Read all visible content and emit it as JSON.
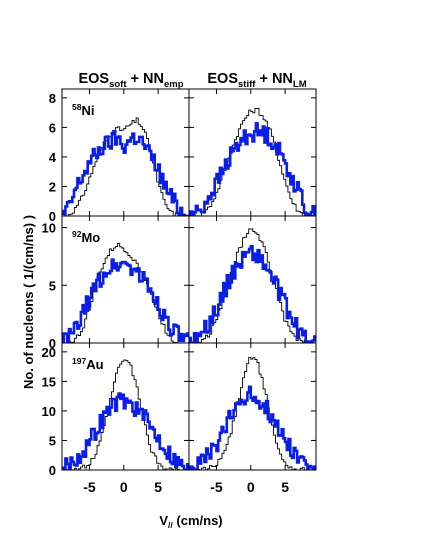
{
  "figure": {
    "ylabel": "No. of nucleons ( 1/(cm/ns) )",
    "xlabel": {
      "main": "V",
      "sub": "//",
      "unit": " (cm/ns)"
    },
    "col_titles": [
      {
        "a": "EOS",
        "a_sub": "soft",
        "b": " + NN",
        "b_sub": "emp"
      },
      {
        "a": "EOS",
        "a_sub": "stiff",
        "b": " + NN",
        "b_sub": "LM"
      }
    ],
    "rows": [
      {
        "nucleus_mass": "58",
        "nucleus": "Ni",
        "yticks": [
          "0",
          "2",
          "4",
          "6",
          "8"
        ]
      },
      {
        "nucleus_mass": "92",
        "nucleus": "Mo",
        "yticks": [
          "0",
          "5",
          "10"
        ]
      },
      {
        "nucleus_mass": "197",
        "nucleus": "Au",
        "yticks": [
          "0",
          "5",
          "10",
          "15",
          "20"
        ]
      }
    ],
    "xticks": [
      "-5",
      "0",
      "5"
    ]
  },
  "chart_data": {
    "type": "line",
    "grid": false,
    "xlim": [
      -9,
      9.5
    ],
    "colors": {
      "thin": "#000000",
      "thick": "#0a1ee8"
    },
    "panels": [
      {
        "row": 0,
        "col": 0,
        "ylim": [
          0,
          8.6
        ],
        "series": [
          {
            "style": "thin",
            "x": [
              -9,
              -8,
              -7,
              -6,
              -5,
              -4,
              -3,
              -2,
              -1,
              0,
              1,
              2,
              3,
              4,
              5,
              6,
              7,
              8,
              9
            ],
            "y": [
              0,
              0.1,
              0.5,
              1.3,
              2.5,
              3.8,
              4.8,
              5.5,
              5.9,
              5.8,
              6.2,
              6.5,
              5.8,
              4.2,
              2.3,
              0.8,
              0.2,
              0.05,
              0
            ]
          },
          {
            "style": "thick",
            "x": [
              -9,
              -8,
              -7,
              -6,
              -5,
              -4,
              -3,
              -2,
              -1,
              0,
              1,
              2,
              3,
              4,
              5,
              6,
              7,
              8,
              9
            ],
            "y": [
              0,
              0.5,
              1.8,
              2.7,
              3.6,
              4.2,
              4.7,
              5.0,
              5.3,
              4.7,
              5.2,
              5.4,
              4.8,
              4.0,
              3.2,
              2.0,
              1.2,
              0.5,
              0.1
            ]
          }
        ]
      },
      {
        "row": 0,
        "col": 1,
        "ylim": [
          0,
          8.6
        ],
        "series": [
          {
            "style": "thin",
            "x": [
              -9,
              -8,
              -7,
              -6,
              -5,
              -4,
              -3,
              -2,
              -1,
              0,
              1,
              2,
              3,
              4,
              5,
              6,
              7,
              8,
              9
            ],
            "y": [
              0,
              0.05,
              0.2,
              0.6,
              1.5,
              2.8,
              4.2,
              5.5,
              6.5,
              7.1,
              7.2,
              6.6,
              5.6,
              4.0,
              2.4,
              1.0,
              0.3,
              0.05,
              0
            ]
          },
          {
            "style": "thick",
            "x": [
              -9,
              -8,
              -7,
              -6,
              -5,
              -4,
              -3,
              -2,
              -1,
              0,
              1,
              2,
              3,
              4,
              5,
              6,
              7,
              8,
              9
            ],
            "y": [
              0,
              0.2,
              0.6,
              1.4,
              2.2,
              3.1,
              4.0,
              4.7,
              5.3,
              5.6,
              5.7,
              5.6,
              5.2,
              4.5,
              3.6,
              2.6,
              1.6,
              0.6,
              0.1
            ]
          }
        ]
      },
      {
        "row": 1,
        "col": 0,
        "ylim": [
          0,
          11
        ],
        "series": [
          {
            "style": "thin",
            "x": [
              -9,
              -8,
              -7,
              -6,
              -5,
              -4,
              -3,
              -2,
              -1,
              0,
              1,
              2,
              3,
              4,
              5,
              6,
              7,
              8,
              9
            ],
            "y": [
              0,
              0.05,
              0.3,
              1.2,
              3.0,
              5.2,
              6.8,
              7.9,
              8.5,
              8.2,
              7.6,
              6.9,
              5.7,
              4.2,
              2.6,
              1.2,
              0.3,
              0.05,
              0
            ]
          },
          {
            "style": "thick",
            "x": [
              -9,
              -8,
              -7,
              -6,
              -5,
              -4,
              -3,
              -2,
              -1,
              0,
              1,
              2,
              3,
              4,
              5,
              6,
              7,
              8,
              9
            ],
            "y": [
              0.1,
              0.4,
              1.2,
              2.4,
              3.8,
              5.0,
              5.9,
              6.5,
              6.8,
              6.9,
              6.6,
              6.1,
              5.4,
              4.5,
              3.4,
              2.3,
              1.3,
              0.6,
              0.2
            ]
          }
        ]
      },
      {
        "row": 1,
        "col": 1,
        "ylim": [
          0,
          11
        ],
        "series": [
          {
            "style": "thin",
            "x": [
              -9,
              -8,
              -7,
              -6,
              -5,
              -4,
              -3,
              -2,
              -1,
              0,
              1,
              2,
              3,
              4,
              5,
              6,
              7,
              8,
              9
            ],
            "y": [
              0,
              0.05,
              0.2,
              0.8,
              2.0,
              3.8,
              5.8,
              7.6,
              9.0,
              9.8,
              9.5,
              8.2,
              6.2,
              4.0,
              2.0,
              0.8,
              0.2,
              0.05,
              0
            ]
          },
          {
            "style": "thick",
            "x": [
              -9,
              -8,
              -7,
              -6,
              -5,
              -4,
              -3,
              -2,
              -1,
              0,
              1,
              2,
              3,
              4,
              5,
              6,
              7,
              8,
              9
            ],
            "y": [
              0,
              0.3,
              0.9,
              1.8,
              3.0,
              4.3,
              5.6,
              6.7,
              7.5,
              7.9,
              7.6,
              6.8,
              5.8,
              4.6,
              3.3,
              2.0,
              1.0,
              0.4,
              0.1
            ]
          }
        ]
      },
      {
        "row": 2,
        "col": 0,
        "ylim": [
          0,
          21.5
        ],
        "series": [
          {
            "style": "thin",
            "x": [
              -9,
              -8,
              -7,
              -6,
              -5,
              -4,
              -3,
              -2,
              -1,
              0,
              1,
              2,
              3,
              4,
              5,
              6,
              7,
              8,
              9
            ],
            "y": [
              0,
              0,
              0.1,
              0.3,
              1.0,
              2.8,
              6.5,
              11.5,
              16.5,
              18.8,
              17.8,
              13.5,
              8.0,
              3.5,
              1.2,
              0.3,
              0.1,
              0,
              0
            ]
          },
          {
            "style": "thick",
            "x": [
              -9,
              -8,
              -7,
              -6,
              -5,
              -4,
              -3,
              -2,
              -1,
              0,
              1,
              2,
              3,
              4,
              5,
              6,
              7,
              8,
              9
            ],
            "y": [
              0.5,
              1.0,
              1.8,
              3.0,
              4.8,
              6.8,
              8.8,
              10.5,
              11.6,
              11.8,
              11.2,
              10.2,
              8.8,
              7.2,
              5.5,
              3.8,
              2.4,
              1.2,
              0.4
            ]
          }
        ]
      },
      {
        "row": 2,
        "col": 1,
        "ylim": [
          0,
          21.5
        ],
        "series": [
          {
            "style": "thin",
            "x": [
              -9,
              -8,
              -7,
              -6,
              -5,
              -4,
              -3,
              -2,
              -1,
              0,
              1,
              2,
              3,
              4,
              5,
              6,
              7,
              8,
              9
            ],
            "y": [
              0,
              0,
              0.1,
              0.3,
              1.0,
              2.5,
              5.8,
              10.5,
              16.0,
              19.2,
              18.0,
              13.8,
              8.2,
              3.5,
              1.2,
              0.3,
              0.1,
              0,
              0
            ]
          },
          {
            "style": "thick",
            "x": [
              -9,
              -8,
              -7,
              -6,
              -5,
              -4,
              -3,
              -2,
              -1,
              0,
              1,
              2,
              3,
              4,
              5,
              6,
              7,
              8,
              9
            ],
            "y": [
              0.3,
              0.8,
              1.5,
              2.6,
              4.2,
              6.3,
              8.8,
              11.0,
              12.5,
              12.8,
              12.2,
              11.0,
              9.2,
              7.2,
              5.3,
              3.6,
              2.2,
              1.0,
              0.3
            ]
          }
        ]
      }
    ]
  }
}
